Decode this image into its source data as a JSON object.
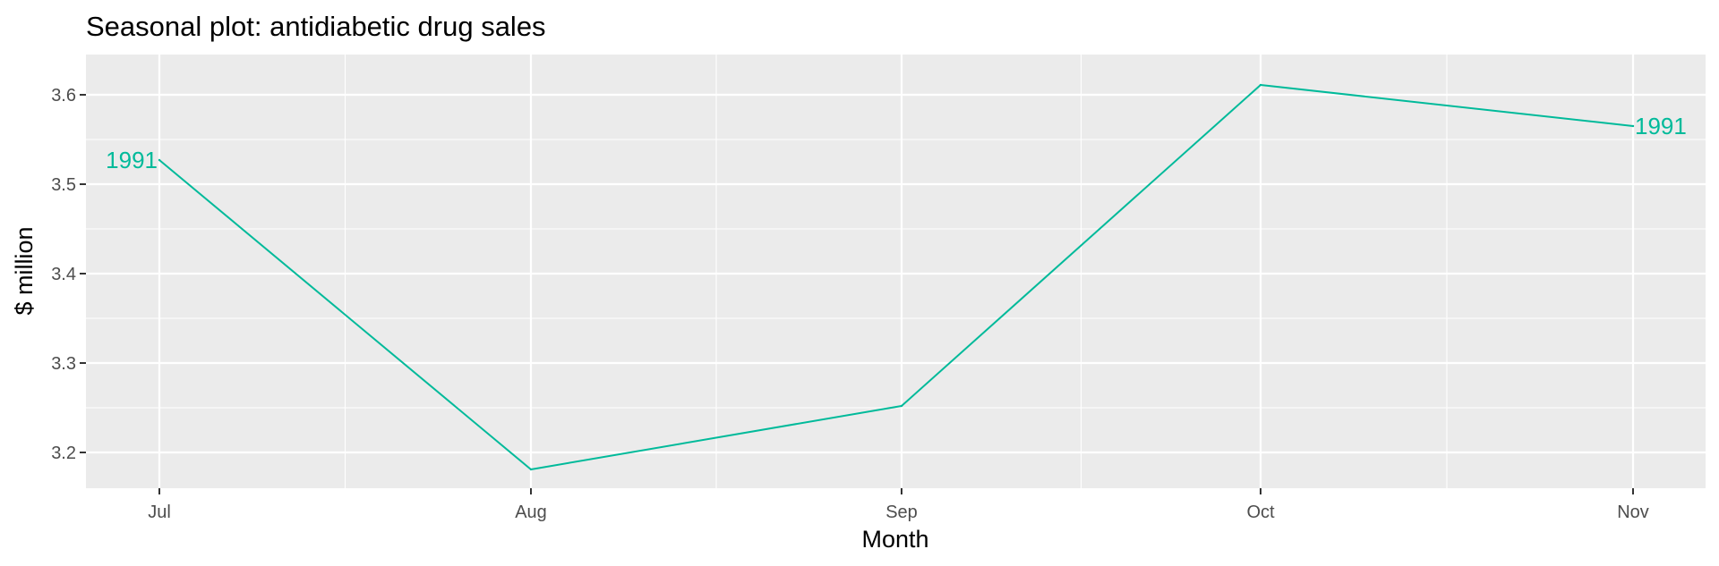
{
  "chart_data": {
    "type": "line",
    "title": "Seasonal plot: antidiabetic drug sales",
    "xlabel": "Month",
    "ylabel": "$ million",
    "categories": [
      "Jul",
      "Aug",
      "Sep",
      "Oct",
      "Nov"
    ],
    "ylim": [
      3.16,
      3.645
    ],
    "yticks": [
      3.2,
      3.3,
      3.4,
      3.5,
      3.6
    ],
    "ytick_labels": [
      "3.2",
      "3.3",
      "3.4",
      "3.5",
      "3.6"
    ],
    "grid": true,
    "legend": "none",
    "series": [
      {
        "name": "1991",
        "color": "#00BA9A",
        "values": [
          3.527,
          3.181,
          3.252,
          3.611,
          3.565
        ]
      }
    ]
  }
}
